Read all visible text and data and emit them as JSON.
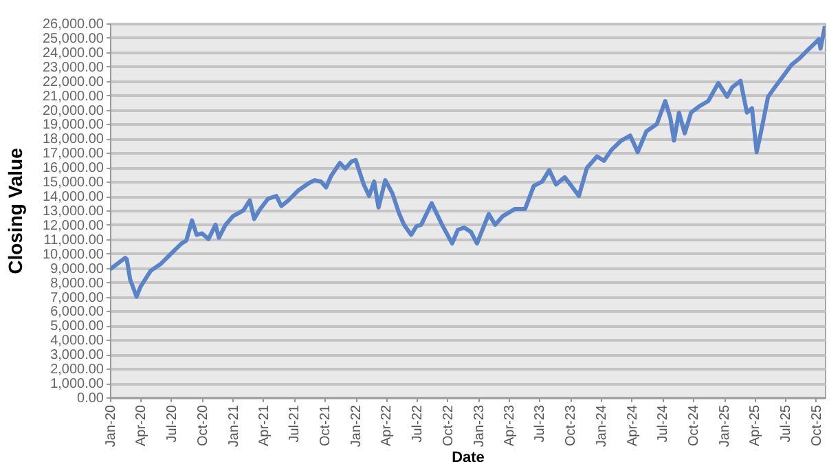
{
  "chart_data": {
    "type": "line",
    "xlabel": "Date",
    "ylabel": "Closing Value",
    "grid": "y",
    "marker": "none",
    "line_style": "solid",
    "xlim": [
      "2020-01-01",
      "2025-10-28"
    ],
    "ylim": [
      0,
      26000
    ],
    "xticks": [
      {
        "value": "2020-01-01",
        "label": "Jan-20"
      },
      {
        "value": "2020-04-01",
        "label": "Apr-20"
      },
      {
        "value": "2020-07-01",
        "label": "Jul-20"
      },
      {
        "value": "2020-10-01",
        "label": "Oct-20"
      },
      {
        "value": "2021-01-01",
        "label": "Jan-21"
      },
      {
        "value": "2021-04-01",
        "label": "Apr-21"
      },
      {
        "value": "2021-07-01",
        "label": "Jul-21"
      },
      {
        "value": "2021-10-01",
        "label": "Oct-21"
      },
      {
        "value": "2022-01-01",
        "label": "Jan-22"
      },
      {
        "value": "2022-04-01",
        "label": "Apr-22"
      },
      {
        "value": "2022-07-01",
        "label": "Jul-22"
      },
      {
        "value": "2022-10-01",
        "label": "Oct-22"
      },
      {
        "value": "2023-01-01",
        "label": "Jan-23"
      },
      {
        "value": "2023-04-01",
        "label": "Apr-23"
      },
      {
        "value": "2023-07-01",
        "label": "Jul-23"
      },
      {
        "value": "2023-10-01",
        "label": "Oct-23"
      },
      {
        "value": "2024-01-01",
        "label": "Jan-24"
      },
      {
        "value": "2024-04-01",
        "label": "Apr-24"
      },
      {
        "value": "2024-07-01",
        "label": "Jul-24"
      },
      {
        "value": "2024-10-01",
        "label": "Oct-24"
      },
      {
        "value": "2025-01-01",
        "label": "Jan-25"
      },
      {
        "value": "2025-04-01",
        "label": "Apr-25"
      },
      {
        "value": "2025-07-01",
        "label": "Jul-25"
      },
      {
        "value": "2025-10-01",
        "label": "Oct-25"
      }
    ],
    "yticks": [
      {
        "value": 0,
        "label": "0.00"
      },
      {
        "value": 1000,
        "label": "1,000.00"
      },
      {
        "value": 2000,
        "label": "2,000.00"
      },
      {
        "value": 3000,
        "label": "3,000.00"
      },
      {
        "value": 4000,
        "label": "4,000.00"
      },
      {
        "value": 5000,
        "label": "5,000.00"
      },
      {
        "value": 6000,
        "label": "6,000.00"
      },
      {
        "value": 7000,
        "label": "7,000.00"
      },
      {
        "value": 8000,
        "label": "8,000.00"
      },
      {
        "value": 9000,
        "label": "9,000.00"
      },
      {
        "value": 10000,
        "label": "10,000.00"
      },
      {
        "value": 11000,
        "label": "11,000.00"
      },
      {
        "value": 12000,
        "label": "12,000.00"
      },
      {
        "value": 13000,
        "label": "13,000.00"
      },
      {
        "value": 14000,
        "label": "14,000.00"
      },
      {
        "value": 15000,
        "label": "15,000.00"
      },
      {
        "value": 16000,
        "label": "16,000.00"
      },
      {
        "value": 17000,
        "label": "17,000.00"
      },
      {
        "value": 18000,
        "label": "18,000.00"
      },
      {
        "value": 19000,
        "label": "19,000.00"
      },
      {
        "value": 20000,
        "label": "20,000.00"
      },
      {
        "value": 21000,
        "label": "21,000.00"
      },
      {
        "value": 22000,
        "label": "22,000.00"
      },
      {
        "value": 23000,
        "label": "23,000.00"
      },
      {
        "value": 24000,
        "label": "24,000.00"
      },
      {
        "value": 25000,
        "label": "25,000.00"
      },
      {
        "value": 26000,
        "label": "26,000.00"
      }
    ],
    "x": [
      "2020-01-01",
      "2020-02-15",
      "2020-02-20",
      "2020-03-01",
      "2020-03-20",
      "2020-04-01",
      "2020-05-01",
      "2020-06-01",
      "2020-07-01",
      "2020-08-01",
      "2020-08-15",
      "2020-09-01",
      "2020-09-15",
      "2020-10-01",
      "2020-10-20",
      "2020-11-10",
      "2020-11-20",
      "2020-12-10",
      "2021-01-01",
      "2021-02-01",
      "2021-02-20",
      "2021-03-05",
      "2021-03-20",
      "2021-04-15",
      "2021-05-10",
      "2021-05-25",
      "2021-06-15",
      "2021-07-15",
      "2021-08-15",
      "2021-09-01",
      "2021-09-20",
      "2021-10-05",
      "2021-10-20",
      "2021-11-15",
      "2021-12-01",
      "2021-12-20",
      "2022-01-01",
      "2022-01-25",
      "2022-02-10",
      "2022-02-25",
      "2022-03-10",
      "2022-03-30",
      "2022-04-20",
      "2022-05-10",
      "2022-05-25",
      "2022-06-15",
      "2022-07-01",
      "2022-07-15",
      "2022-08-15",
      "2022-09-15",
      "2022-10-15",
      "2022-11-01",
      "2022-11-20",
      "2022-12-10",
      "2022-12-28",
      "2023-02-01",
      "2023-02-20",
      "2023-03-15",
      "2023-04-20",
      "2023-05-20",
      "2023-06-15",
      "2023-07-10",
      "2023-07-31",
      "2023-08-20",
      "2023-09-15",
      "2023-10-05",
      "2023-10-27",
      "2023-11-20",
      "2023-12-20",
      "2024-01-10",
      "2024-02-01",
      "2024-03-01",
      "2024-03-28",
      "2024-04-19",
      "2024-05-15",
      "2024-06-15",
      "2024-07-10",
      "2024-07-25",
      "2024-08-05",
      "2024-08-20",
      "2024-09-06",
      "2024-09-25",
      "2024-10-20",
      "2024-11-15",
      "2024-12-15",
      "2025-01-10",
      "2025-01-25",
      "2025-02-19",
      "2025-03-10",
      "2025-03-25",
      "2025-04-08",
      "2025-04-20",
      "2025-05-12",
      "2025-06-01",
      "2025-06-25",
      "2025-07-20",
      "2025-08-15",
      "2025-09-05",
      "2025-09-25",
      "2025-10-10",
      "2025-10-15",
      "2025-10-28"
    ],
    "series": [
      {
        "color": "#5b84c8",
        "values": [
          8900,
          9700,
          9600,
          8200,
          7000,
          7700,
          8800,
          9300,
          10000,
          10700,
          10900,
          12300,
          11300,
          11400,
          11000,
          12000,
          11100,
          12000,
          12600,
          13000,
          13700,
          12400,
          13000,
          13800,
          14000,
          13300,
          13700,
          14400,
          14900,
          15100,
          15000,
          14600,
          15400,
          16300,
          15900,
          16400,
          16500,
          14800,
          14000,
          15000,
          13200,
          15100,
          14200,
          12800,
          12000,
          11300,
          11900,
          12000,
          13500,
          12000,
          10700,
          11650,
          11800,
          11500,
          10700,
          12750,
          12000,
          12600,
          13100,
          13100,
          14700,
          15000,
          15800,
          14800,
          15300,
          14700,
          14000,
          15950,
          16750,
          16450,
          17200,
          17850,
          18200,
          17050,
          18500,
          19000,
          20600,
          19450,
          17850,
          19800,
          18350,
          19800,
          20250,
          20600,
          21850,
          20900,
          21550,
          22000,
          19800,
          20100,
          17050,
          18350,
          20900,
          21550,
          22300,
          23100,
          23600,
          24100,
          24550,
          24900,
          24250,
          25800
        ]
      }
    ]
  }
}
